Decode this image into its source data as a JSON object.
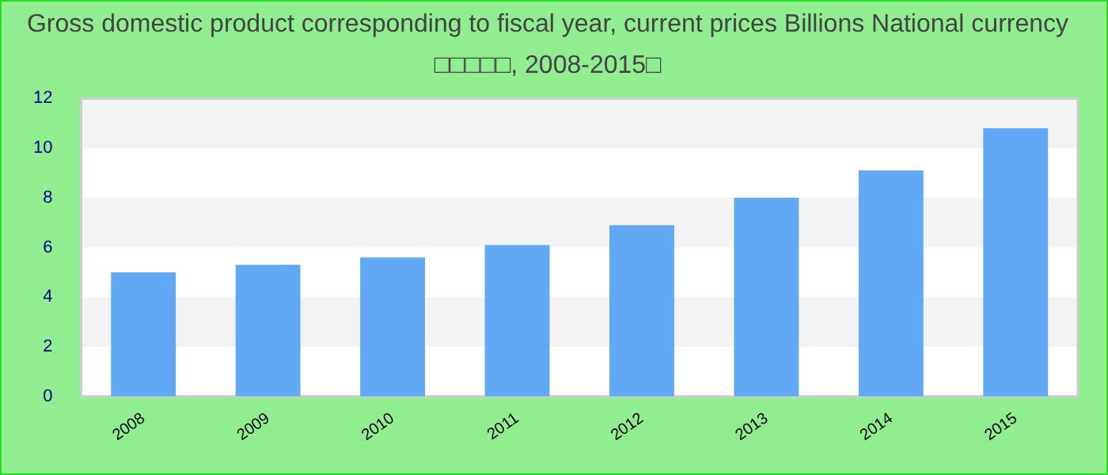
{
  "chart_data": {
    "type": "bar",
    "title": [
      "Gross domestic product corresponding to fiscal year, current prices Billions National currency",
      "□□□□□, 2008-2015□"
    ],
    "categories": [
      "2008",
      "2009",
      "2010",
      "2011",
      "2012",
      "2013",
      "2014",
      "2015"
    ],
    "values": [
      5.0,
      5.3,
      5.6,
      6.1,
      6.9,
      8.0,
      9.1,
      10.8
    ],
    "color": "#61a8f5",
    "ylim": [
      0,
      12
    ],
    "yticks": [
      0,
      2,
      4,
      6,
      8,
      10,
      12
    ]
  }
}
